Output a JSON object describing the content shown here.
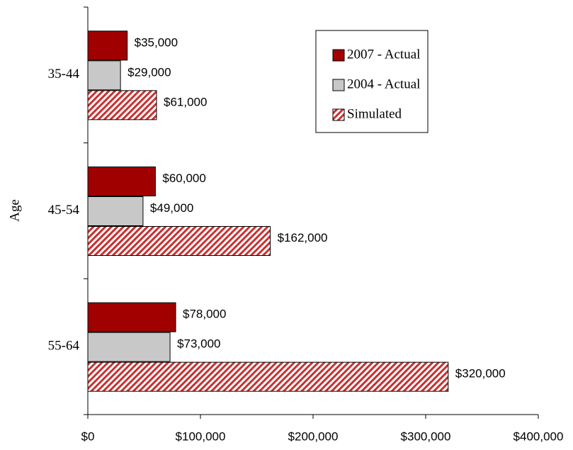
{
  "chart_data": {
    "type": "bar",
    "orientation": "horizontal",
    "y_label": "Age",
    "categories": [
      "35-44",
      "45-54",
      "55-64"
    ],
    "series": [
      {
        "name": "2007 - Actual",
        "color": "#a00000",
        "values": [
          35000,
          60000,
          78000
        ],
        "value_labels": [
          "$35,000",
          "$60,000",
          "$78,000"
        ]
      },
      {
        "name": "2004 - Actual",
        "color": "#c8c8c8",
        "values": [
          29000,
          49000,
          73000
        ],
        "value_labels": [
          "$29,000",
          "$49,000",
          "$73,000"
        ]
      },
      {
        "name": "Simulated",
        "color": "#c83030",
        "hatch": true,
        "values": [
          61000,
          162000,
          320000
        ],
        "value_labels": [
          "$61,000",
          "$162,000",
          "$320,000"
        ]
      }
    ],
    "xlim": [
      0,
      400000
    ],
    "xticks": [
      {
        "value": 0,
        "label": "$0"
      },
      {
        "value": 100000,
        "label": "$100,000"
      },
      {
        "value": 200000,
        "label": "$200,000"
      },
      {
        "value": 300000,
        "label": "$300,000"
      },
      {
        "value": 400000,
        "label": "$400,000"
      }
    ]
  }
}
